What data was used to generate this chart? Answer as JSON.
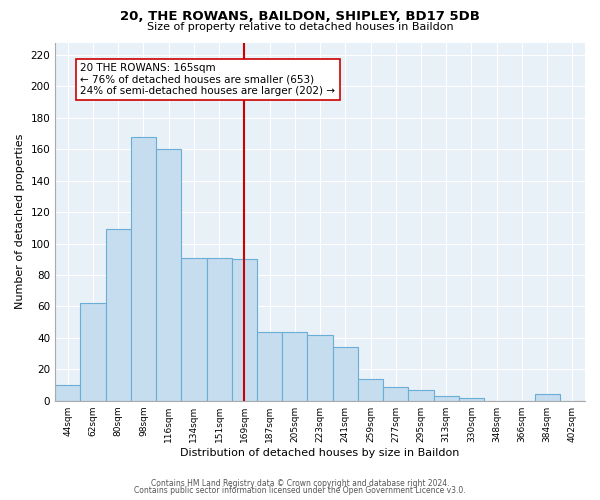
{
  "title": "20, THE ROWANS, BAILDON, SHIPLEY, BD17 5DB",
  "subtitle": "Size of property relative to detached houses in Baildon",
  "xlabel": "Distribution of detached houses by size in Baildon",
  "ylabel": "Number of detached properties",
  "categories": [
    "44sqm",
    "62sqm",
    "80sqm",
    "98sqm",
    "116sqm",
    "134sqm",
    "151sqm",
    "169sqm",
    "187sqm",
    "205sqm",
    "223sqm",
    "241sqm",
    "259sqm",
    "277sqm",
    "295sqm",
    "313sqm",
    "330sqm",
    "348sqm",
    "366sqm",
    "384sqm",
    "402sqm"
  ],
  "values": [
    10,
    62,
    109,
    168,
    160,
    91,
    91,
    90,
    44,
    44,
    42,
    34,
    14,
    9,
    7,
    3,
    2,
    0,
    0,
    4,
    0
  ],
  "bar_color": "#c5ddef",
  "bar_edge_color": "#6aaed6",
  "vline_x_index": 7,
  "vline_color": "#cc0000",
  "annotation_text": "20 THE ROWANS: 165sqm\n← 76% of detached houses are smaller (653)\n24% of semi-detached houses are larger (202) →",
  "annotation_box_color": "#ffffff",
  "annotation_box_edge_color": "#cc0000",
  "ylim": [
    0,
    228
  ],
  "yticks": [
    0,
    20,
    40,
    60,
    80,
    100,
    120,
    140,
    160,
    180,
    200,
    220
  ],
  "footer1": "Contains HM Land Registry data © Crown copyright and database right 2024.",
  "footer2": "Contains public sector information licensed under the Open Government Licence v3.0.",
  "background_color": "#ffffff",
  "plot_bg_color": "#e8f0f8",
  "grid_color": "#ffffff"
}
